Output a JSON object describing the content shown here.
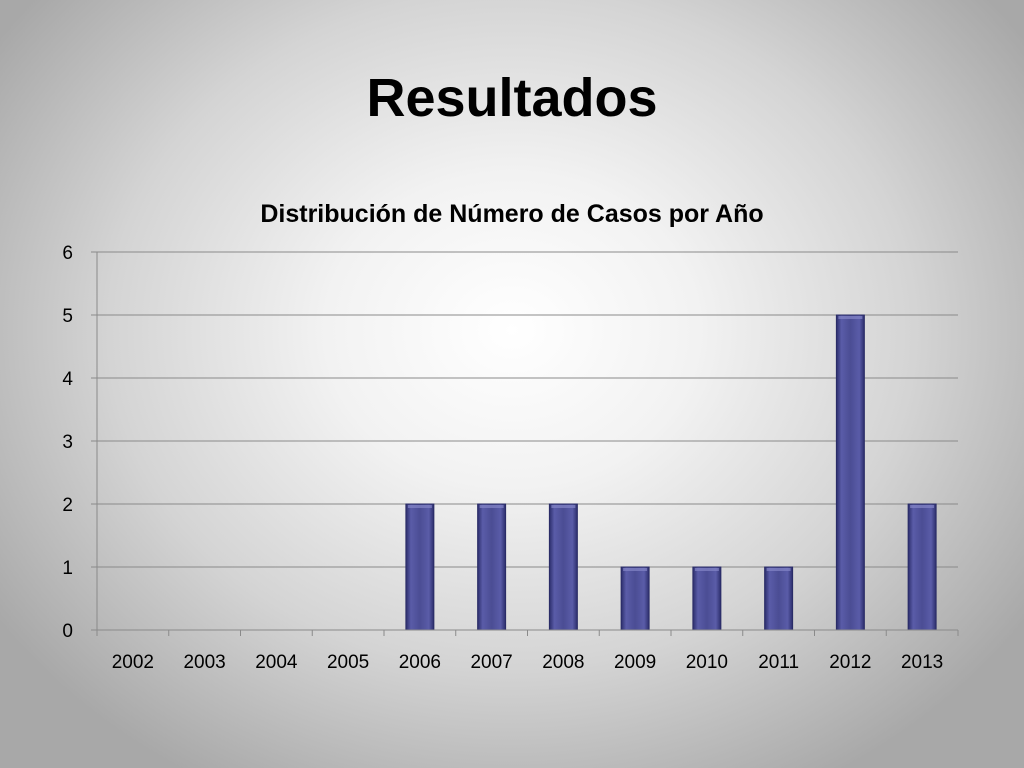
{
  "slide": {
    "title": "Resultados"
  },
  "chart_data": {
    "type": "bar",
    "title": "Distribución de Número de Casos por Año",
    "xlabel": "",
    "ylabel": "",
    "categories": [
      "2002",
      "2003",
      "2004",
      "2005",
      "2006",
      "2007",
      "2008",
      "2009",
      "2010",
      "2011",
      "2012",
      "2013"
    ],
    "values": [
      0,
      0,
      0,
      0,
      2,
      2,
      2,
      1,
      1,
      1,
      5,
      2
    ],
    "ylim": [
      0,
      6
    ],
    "yticks": [
      0,
      1,
      2,
      3,
      4,
      5,
      6
    ],
    "grid": true,
    "legend": "none",
    "colors": {
      "bar": "#4b4d94",
      "bar_edge": "#2a2c66",
      "grid": "#8a8a8a"
    }
  }
}
